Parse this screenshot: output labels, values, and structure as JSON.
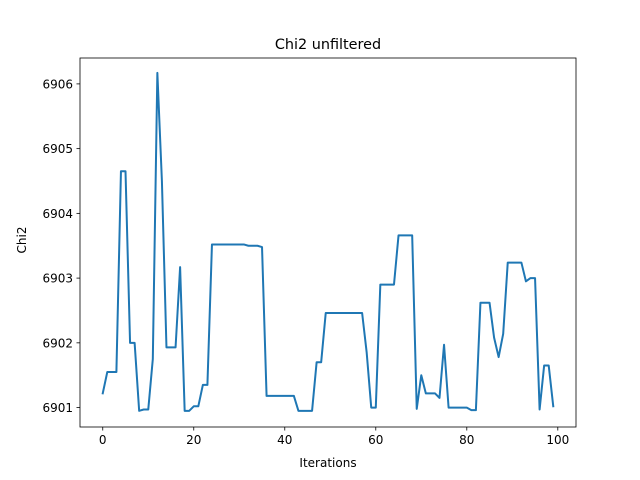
{
  "chart_data": {
    "type": "line",
    "title": "Chi2 unfiltered",
    "xlabel": "Iterations",
    "ylabel": "Chi2",
    "xlim": [
      -5,
      104
    ],
    "ylim": [
      6900.7,
      6906.4
    ],
    "xticks": [
      0,
      20,
      40,
      60,
      80,
      100
    ],
    "yticks": [
      6901,
      6902,
      6903,
      6904,
      6905,
      6906
    ],
    "grid": false,
    "colors": {
      "line": "#1f77b4",
      "axes": "#000000",
      "background": "#ffffff"
    },
    "series": [
      {
        "x": [
          0,
          1,
          2,
          3,
          4,
          5,
          6,
          7,
          8,
          9,
          10,
          11,
          12,
          13,
          14,
          15,
          16,
          17,
          18,
          19,
          20,
          21,
          22,
          23,
          24,
          25,
          26,
          27,
          28,
          29,
          30,
          31,
          32,
          33,
          34,
          35,
          36,
          37,
          38,
          39,
          40,
          41,
          42,
          43,
          44,
          45,
          46,
          47,
          48,
          49,
          50,
          51,
          52,
          53,
          54,
          55,
          56,
          57,
          58,
          59,
          60,
          61,
          62,
          63,
          64,
          65,
          66,
          67,
          68,
          69,
          70,
          71,
          72,
          73,
          74,
          75,
          76,
          77,
          78,
          79,
          80,
          81,
          82,
          83,
          84,
          85,
          86,
          87,
          88,
          89,
          90,
          91,
          92,
          93,
          94,
          95,
          96,
          97,
          98,
          99
        ],
        "y": [
          6901.22,
          6901.55,
          6901.55,
          6901.55,
          6904.65,
          6904.65,
          6902.0,
          6902.0,
          6900.95,
          6900.97,
          6900.97,
          6901.75,
          6906.17,
          6904.5,
          6901.93,
          6901.93,
          6901.93,
          6903.17,
          6900.95,
          6900.95,
          6901.02,
          6901.02,
          6901.35,
          6901.35,
          6903.52,
          6903.52,
          6903.52,
          6903.52,
          6903.52,
          6903.52,
          6903.52,
          6903.52,
          6903.5,
          6903.5,
          6903.5,
          6903.48,
          6901.18,
          6901.18,
          6901.18,
          6901.18,
          6901.18,
          6901.18,
          6901.18,
          6900.95,
          6900.95,
          6900.95,
          6900.95,
          6901.7,
          6901.7,
          6902.46,
          6902.46,
          6902.46,
          6902.46,
          6902.46,
          6902.46,
          6902.46,
          6902.46,
          6902.46,
          6901.85,
          6901.0,
          6901.0,
          6902.9,
          6902.9,
          6902.9,
          6902.9,
          6903.66,
          6903.66,
          6903.66,
          6903.66,
          6900.98,
          6901.5,
          6901.22,
          6901.22,
          6901.22,
          6901.15,
          6901.97,
          6901.0,
          6901.0,
          6901.0,
          6901.0,
          6901.0,
          6900.96,
          6900.96,
          6902.62,
          6902.62,
          6902.62,
          6902.08,
          6901.78,
          6902.14,
          6903.24,
          6903.24,
          6903.24,
          6903.24,
          6902.95,
          6903.0,
          6903.0,
          6900.97,
          6901.65,
          6901.65,
          6901.02
        ]
      }
    ]
  }
}
